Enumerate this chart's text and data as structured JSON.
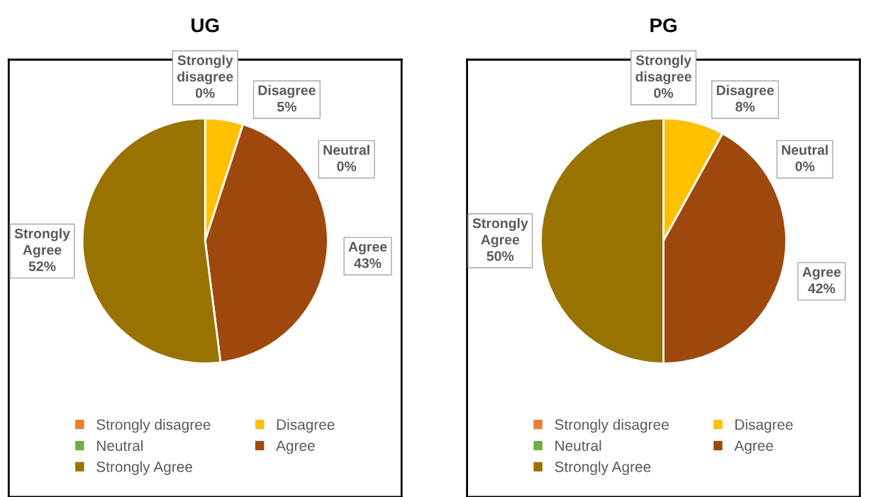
{
  "chart_data": [
    {
      "type": "pie",
      "title": "UG",
      "categories": [
        "Strongly disagree",
        "Disagree",
        "Neutral",
        "Agree",
        "Strongly Agree"
      ],
      "values": [
        0,
        5,
        0,
        43,
        52
      ],
      "colors": [
        "#ed7d31",
        "#ffc000",
        "#70ad47",
        "#9e480e",
        "#997300"
      ],
      "value_labels": [
        "Strongly\ndisagree\n0%",
        "Disagree\n5%",
        "Neutral\n0%",
        "Agree\n43%",
        "Strongly\nAgree\n52%"
      ],
      "legend": "bottom"
    },
    {
      "type": "pie",
      "title": "PG",
      "categories": [
        "Strongly disagree",
        "Disagree",
        "Neutral",
        "Agree",
        "Strongly Agree"
      ],
      "values": [
        0,
        8,
        0,
        42,
        50
      ],
      "colors": [
        "#ed7d31",
        "#ffc000",
        "#70ad47",
        "#9e480e",
        "#997300"
      ],
      "value_labels": [
        "Strongly\ndisagree\n0%",
        "Disagree\n8%",
        "Neutral\n0%",
        "Agree\n42%",
        "Strongly\nAgree\n50%"
      ],
      "legend": "bottom"
    }
  ]
}
